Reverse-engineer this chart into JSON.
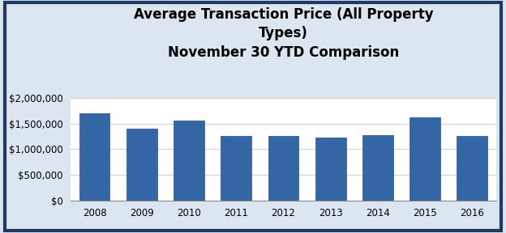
{
  "title_line1": "Average Transaction Price (All Property",
  "title_line2": "Types)",
  "title_line3": "November 30 YTD Comparison",
  "categories": [
    "2008",
    "2009",
    "2010",
    "2011",
    "2012",
    "2013",
    "2014",
    "2015",
    "2016"
  ],
  "values": [
    1700000,
    1400000,
    1550000,
    1250000,
    1250000,
    1220000,
    1270000,
    1620000,
    1250000
  ],
  "bar_color": "#3465A4",
  "bar_edge_color": "#2a527f",
  "ylim": [
    0,
    2000000
  ],
  "yticks": [
    0,
    500000,
    1000000,
    1500000,
    2000000
  ],
  "ytick_labels": [
    "$0",
    "$500,000",
    "$1,000,000",
    "$1,500,000",
    "$2,000,000"
  ],
  "background_color": "#ffffff",
  "outer_background": "#dce6f1",
  "grid_color": "#bbbbbb",
  "title_fontsize": 12,
  "title_fontweight": "bold",
  "tick_fontsize": 8.5,
  "border_color": "#1F3864",
  "border_linewidth": 3
}
